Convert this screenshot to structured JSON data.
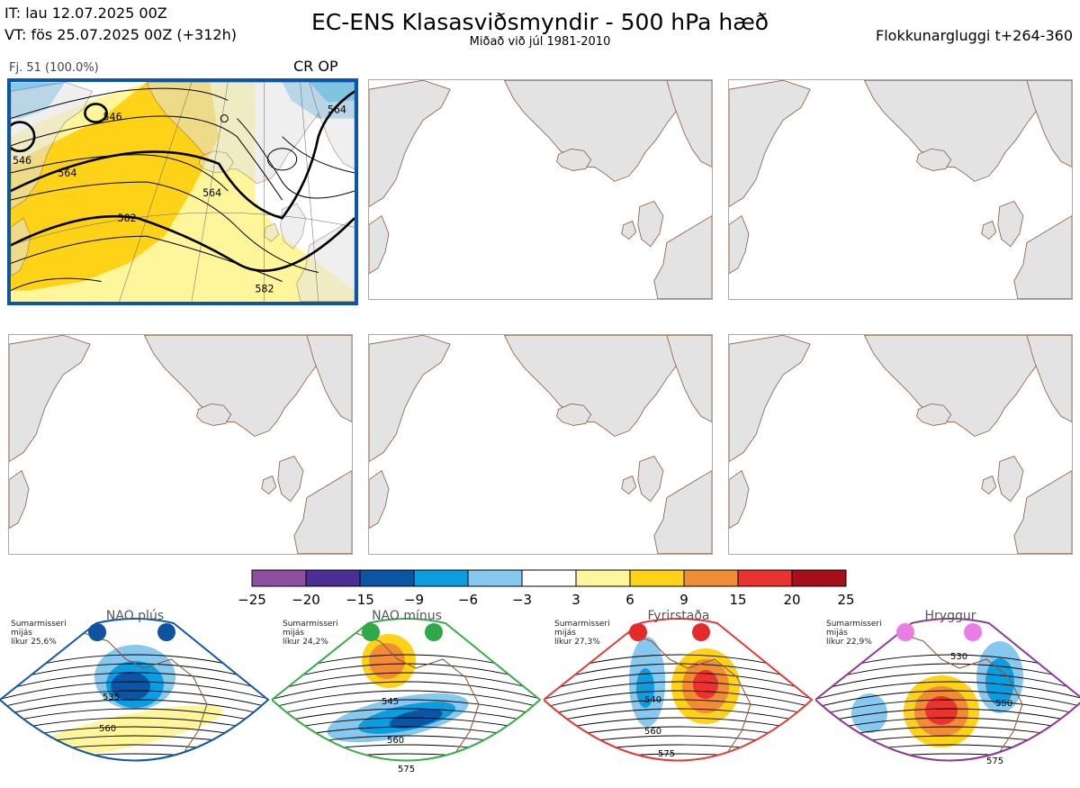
{
  "header": {
    "init_time": "IT: lau 12.07.2025 00Z",
    "valid_time": "VT: fös 25.07.2025 00Z  (+312h)",
    "title": "EC-ENS Klasasviðsmyndir - 500 hPa hæð",
    "subtitle": "Miðað við júl 1981-2010",
    "window": "Flokkunargluggi t+264-360"
  },
  "panel1": {
    "label": "Fj. 51 (100.0%)",
    "corner": "CR OP",
    "contour_labels": [
      "546",
      "564",
      "564",
      "582",
      "582",
      "564",
      "546"
    ]
  },
  "colorbar": {
    "colors": [
      "#8e4fa0",
      "#4a2e96",
      "#0a56a4",
      "#0a9ee0",
      "#86c8ee",
      "#ffffff",
      "#fff59b",
      "#fdd217",
      "#f08d34",
      "#e9332e",
      "#a51019"
    ],
    "ticks": [
      "−25",
      "−20",
      "−15",
      "−9",
      "−6",
      "−3",
      "3",
      "6",
      "9",
      "15",
      "20",
      "25"
    ]
  },
  "regimes": [
    {
      "name": "NAO plús",
      "season": "Sumarmisseri",
      "mean": "mijás",
      "prob": "líkur 25,6%",
      "frame_color": "#1558a6",
      "dot_color": "#0e52a0",
      "labels": [
        "535",
        "560"
      ]
    },
    {
      "name": "NAO mínus",
      "season": "Sumarmisseri",
      "mean": "mijás",
      "prob": "líkur 24,2%",
      "frame_color": "#3aaa4a",
      "dot_color": "#2fa84a",
      "labels": [
        "545",
        "560",
        "575"
      ]
    },
    {
      "name": "Fyrirstaða",
      "season": "Sumarmisseri",
      "mean": "mijás",
      "prob": "líkur 27,3%",
      "frame_color": "#e23a35",
      "dot_color": "#e52a2a",
      "labels": [
        "540",
        "560",
        "575"
      ]
    },
    {
      "name": "Hryggur",
      "season": "Sumarmisseri",
      "mean": "mijás",
      "prob": "líkur 22,9%",
      "frame_color": "#8c3a96",
      "dot_color": "#e87ee3",
      "labels": [
        "530",
        "550",
        "575"
      ]
    }
  ]
}
